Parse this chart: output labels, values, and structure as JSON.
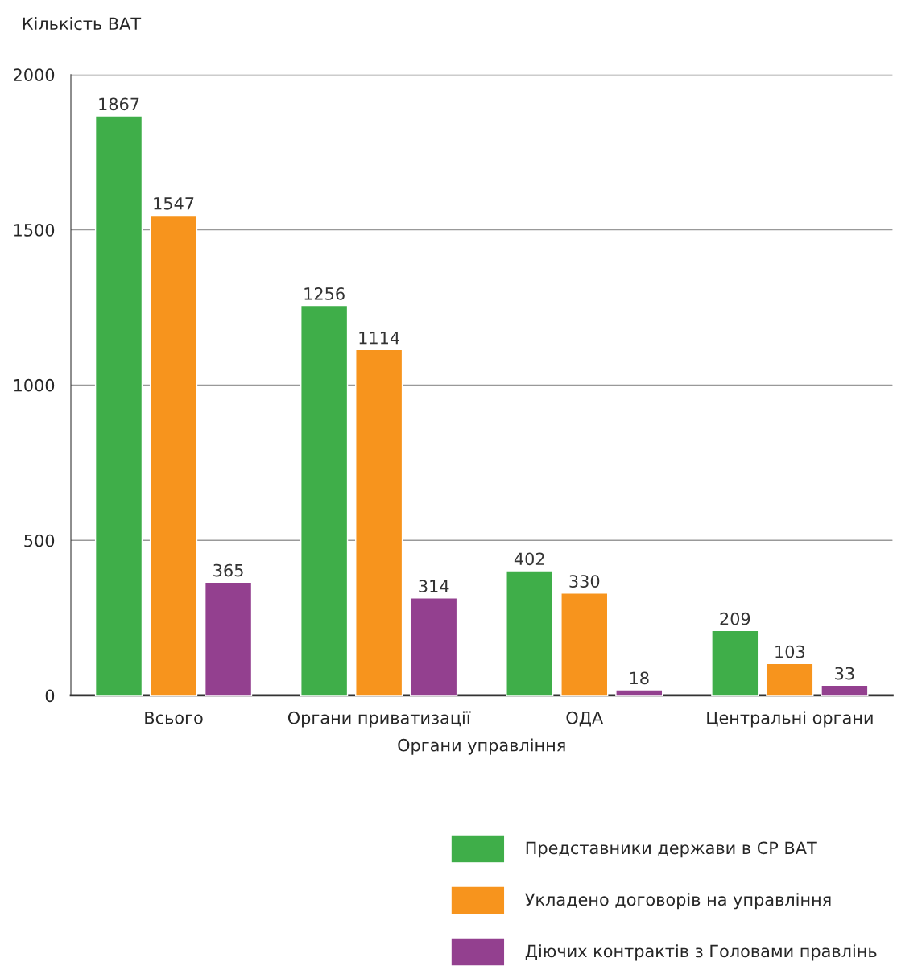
{
  "chart_data": {
    "type": "bar",
    "ylabel": "Кількість ВАТ",
    "xlabel": "Органи управління",
    "categories": [
      "Всього",
      "Органи приватизації",
      "ОДА",
      "Центральні органи"
    ],
    "series": [
      {
        "name": "Представники держави в СР ВАТ",
        "color": "#3fae49",
        "values": [
          1867,
          1256,
          402,
          209
        ]
      },
      {
        "name": "Укладено договорів на управління",
        "color": "#f7941d",
        "values": [
          1547,
          1114,
          330,
          103
        ]
      },
      {
        "name": "Діючих контрактів з Головами правлінь",
        "color": "#93408f",
        "values": [
          365,
          314,
          18,
          33
        ]
      }
    ],
    "ylim": [
      0,
      2000
    ],
    "yticks": [
      0,
      500,
      1000,
      1500,
      2000
    ],
    "grid": "y",
    "data_labels": true,
    "legend": "bottom right"
  }
}
